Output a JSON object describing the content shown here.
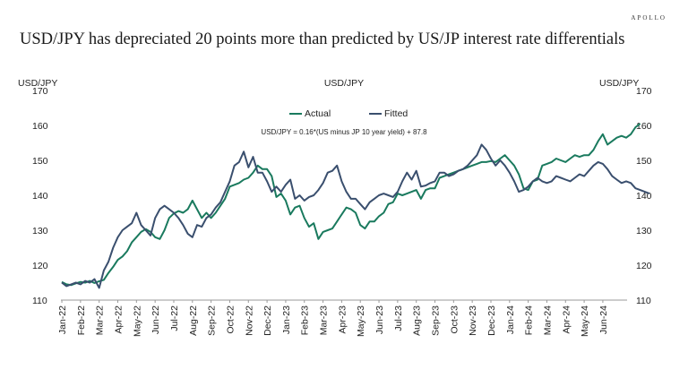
{
  "brand": "APOLLO",
  "headline": "USD/JPY has depreciated 20 points more than predicted by US/JP interest rate differentials",
  "chart_data": {
    "type": "line",
    "title": "USD/JPY",
    "ylabel_left": "USD/JPY",
    "ylabel_right": "USD/JPY",
    "annotation": "USD/JPY = 0.16*(US minus JP 10 year yield) + 87.8",
    "ylim": [
      110,
      170
    ],
    "yticks": [
      "110",
      "120",
      "130",
      "140",
      "150",
      "160",
      "170"
    ],
    "xticks": [
      "Jan-22",
      "Feb-22",
      "Mar-22",
      "Apr-22",
      "May-22",
      "Jun-22",
      "Jul-22",
      "Aug-22",
      "Sep-22",
      "Oct-22",
      "Nov-22",
      "Dec-22",
      "Jan-23",
      "Feb-23",
      "Mar-23",
      "Apr-23",
      "May-23",
      "Jun-23",
      "Jul-23",
      "Aug-23",
      "Sep-23",
      "Oct-23",
      "Nov-23",
      "Dec-23",
      "Jan-24",
      "Feb-24",
      "Mar-24",
      "Apr-24",
      "May-24",
      "Jun-24"
    ],
    "x_start": 0,
    "x_step": 0.25,
    "series": [
      {
        "name": "Actual",
        "color": "#1a7a5e",
        "values": [
          115.2,
          114.5,
          114.3,
          114.8,
          115.2,
          115.0,
          115.5,
          114.9,
          115.4,
          115.8,
          117.8,
          119.5,
          121.5,
          122.5,
          124.0,
          126.5,
          128.0,
          129.5,
          130.3,
          129.5,
          128.0,
          127.5,
          130.0,
          133.5,
          134.8,
          135.5,
          135.0,
          136.0,
          138.5,
          136.0,
          133.5,
          135.0,
          133.5,
          135.0,
          137.0,
          139.0,
          142.5,
          143.0,
          143.5,
          144.5,
          145.0,
          146.5,
          148.5,
          147.5,
          147.5,
          145.5,
          139.5,
          140.5,
          138.5,
          134.5,
          136.5,
          137.0,
          133.5,
          131.0,
          132.0,
          127.5,
          129.5,
          130.0,
          130.5,
          132.5,
          134.5,
          136.5,
          136.0,
          135.0,
          131.5,
          130.5,
          132.5,
          132.5,
          134.0,
          135.0,
          137.5,
          138.0,
          140.5,
          140.0,
          140.5,
          141.0,
          141.5,
          139.0,
          141.5,
          142.0,
          142.0,
          145.0,
          145.5,
          146.0,
          146.5,
          147.0,
          147.5,
          148.0,
          148.5,
          149.0,
          149.5,
          149.5,
          149.8,
          149.5,
          150.5,
          151.5,
          150.0,
          148.5,
          146.0,
          142.0,
          141.5,
          144.0,
          144.5,
          148.5,
          149.0,
          149.5,
          150.5,
          150.0,
          149.5,
          150.5,
          151.5,
          151.0,
          151.5,
          151.5,
          153.0,
          155.5,
          157.5,
          154.5,
          155.5,
          156.5,
          157.0,
          156.5,
          157.5,
          159.5,
          160.5
        ]
      },
      {
        "name": "Fitted",
        "color": "#3a4f6e",
        "values": [
          115.0,
          114.0,
          114.5,
          115.0,
          114.5,
          115.5,
          115.0,
          116.0,
          113.5,
          118.5,
          121.0,
          125.0,
          128.0,
          130.0,
          131.0,
          132.0,
          135.0,
          131.5,
          130.0,
          128.5,
          133.5,
          136.0,
          137.0,
          136.0,
          135.0,
          133.5,
          131.5,
          129.0,
          128.0,
          131.5,
          131.0,
          133.5,
          134.5,
          136.5,
          138.0,
          141.0,
          144.0,
          148.5,
          149.5,
          152.5,
          148.0,
          151.0,
          146.5,
          146.5,
          144.0,
          141.0,
          142.5,
          141.0,
          143.0,
          144.5,
          139.0,
          140.0,
          138.5,
          139.5,
          140.0,
          141.5,
          143.5,
          146.5,
          147.0,
          148.5,
          144.0,
          141.0,
          139.0,
          139.0,
          137.5,
          136.0,
          138.0,
          139.0,
          140.0,
          140.5,
          140.0,
          139.5,
          141.0,
          144.0,
          146.5,
          144.5,
          147.0,
          142.5,
          142.8,
          143.5,
          144.0,
          146.5,
          146.5,
          145.5,
          146.0,
          147.0,
          147.5,
          148.5,
          150.0,
          151.5,
          154.5,
          153.0,
          150.5,
          148.5,
          150.0,
          148.5,
          146.5,
          144.0,
          141.0,
          141.5,
          142.5,
          144.0,
          145.0,
          144.0,
          143.5,
          144.0,
          145.5,
          145.0,
          144.5,
          144.0,
          145.0,
          146.0,
          145.5,
          147.0,
          148.5,
          149.5,
          149.0,
          147.5,
          145.5,
          144.5,
          143.5,
          144.0,
          143.5,
          142.0,
          141.5,
          141.0,
          140.5
        ]
      }
    ]
  }
}
